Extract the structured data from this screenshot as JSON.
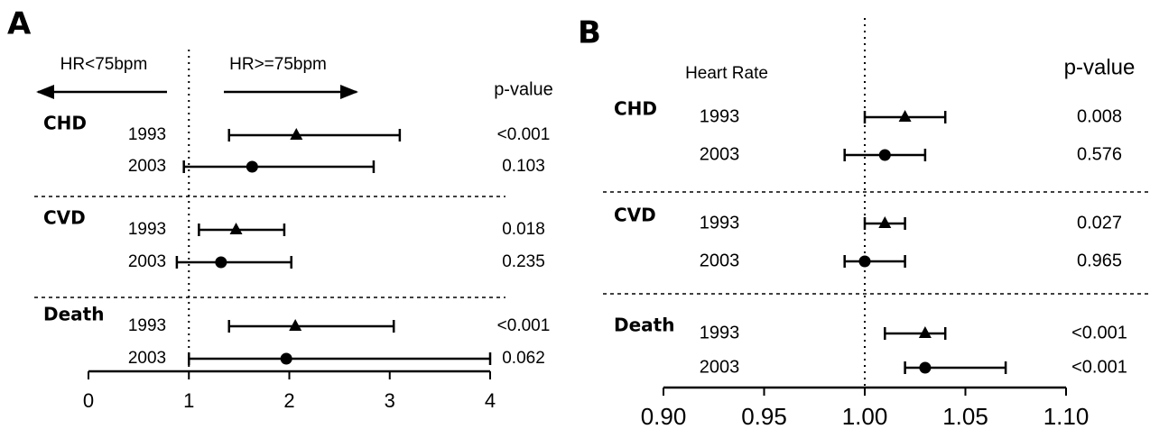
{
  "chart_data": [
    {
      "type": "forest",
      "panel": "A",
      "annotations": [
        "HR<75bpm",
        "HR>=75bpm"
      ],
      "p_header": "p-value",
      "xlim": [
        0,
        4
      ],
      "xticks": [
        0,
        1,
        2,
        3,
        4
      ],
      "reference": 1,
      "groups": [
        {
          "name": "CHD",
          "rows": [
            {
              "label": "1993",
              "marker": "triangle",
              "estimate": 2.07,
              "lower": 1.4,
              "upper": 3.1,
              "p_value": "<0.001"
            },
            {
              "label": "2003",
              "marker": "circle",
              "estimate": 1.63,
              "lower": 0.95,
              "upper": 2.84,
              "p_value": 0.103
            }
          ]
        },
        {
          "name": "CVD",
          "rows": [
            {
              "label": "1993",
              "marker": "triangle",
              "estimate": 1.47,
              "lower": 1.1,
              "upper": 1.95,
              "p_value": 0.018
            },
            {
              "label": "2003",
              "marker": "circle",
              "estimate": 1.32,
              "lower": 0.88,
              "upper": 2.02,
              "p_value": 0.235
            }
          ]
        },
        {
          "name": "Death",
          "rows": [
            {
              "label": "1993",
              "marker": "triangle",
              "estimate": 2.06,
              "lower": 1.4,
              "upper": 3.04,
              "p_value": "<0.001"
            },
            {
              "label": "2003",
              "marker": "circle",
              "estimate": 1.97,
              "lower": 1.0,
              "upper": 4.0,
              "p_value": 0.062
            }
          ]
        }
      ]
    },
    {
      "type": "forest",
      "panel": "B",
      "annotations": [
        "Heart Rate"
      ],
      "p_header": "p-value",
      "xlim": [
        0.9,
        1.1
      ],
      "xticks": [
        {
          "value": 0.9,
          "label": "0.90"
        },
        {
          "value": 0.95,
          "label": "0.95"
        },
        {
          "value": 1.0,
          "label": "1.00"
        },
        {
          "value": 1.05,
          "label": "1.05"
        },
        {
          "value": 1.1,
          "label": "1.10"
        }
      ],
      "reference": 1,
      "groups": [
        {
          "name": "CHD",
          "rows": [
            {
              "label": "1993",
              "marker": "triangle",
              "estimate": 1.02,
              "lower": 1.0,
              "upper": 1.04,
              "p_value": 0.008
            },
            {
              "label": "2003",
              "marker": "circle",
              "estimate": 1.01,
              "lower": 0.99,
              "upper": 1.03,
              "p_value": 0.576
            }
          ]
        },
        {
          "name": "CVD",
          "rows": [
            {
              "label": "1993",
              "marker": "triangle",
              "estimate": 1.01,
              "lower": 1.0,
              "upper": 1.02,
              "p_value": 0.027
            },
            {
              "label": "2003",
              "marker": "circle",
              "estimate": 1.0,
              "lower": 0.99,
              "upper": 1.02,
              "p_value": 0.965
            }
          ]
        },
        {
          "name": "Death",
          "rows": [
            {
              "label": "1993",
              "marker": "triangle",
              "estimate": 1.03,
              "lower": 1.01,
              "upper": 1.04,
              "p_value": "<0.001"
            },
            {
              "label": "2003",
              "marker": "circle",
              "estimate": 1.03,
              "lower": 1.02,
              "upper": 1.07,
              "p_value": "<0.001"
            }
          ]
        }
      ]
    }
  ]
}
